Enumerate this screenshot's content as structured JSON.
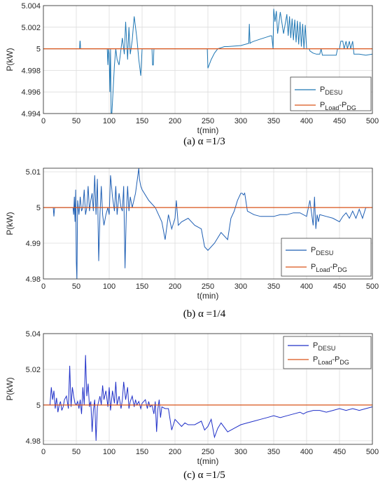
{
  "chart_data": [
    {
      "type": "line",
      "caption": "(a) α =1/3",
      "xlabel": "t(min)",
      "ylabel": "P(kW)",
      "xlim": [
        0,
        500
      ],
      "ylim": [
        4.994,
        5.004
      ],
      "xticks": [
        0,
        50,
        100,
        150,
        200,
        250,
        300,
        350,
        400,
        450,
        500
      ],
      "yticks": [
        4.994,
        4.996,
        4.998,
        5,
        5.002,
        5.004
      ],
      "ytick_labels": [
        "4.994",
        "4.996",
        "4.998",
        "5",
        "5.002",
        "5.004"
      ],
      "grid": true,
      "legend_position": "lower-right",
      "series": [
        {
          "name": "P_DESU",
          "label_main": "P",
          "label_sub": "DESU",
          "color": "#1f77b4",
          "x": [
            0,
            55,
            55.5,
            56,
            56.5,
            57,
            97,
            98,
            99,
            100,
            101,
            102,
            103,
            104,
            108,
            110,
            112,
            115,
            118,
            120,
            123,
            125,
            128,
            130,
            132,
            135,
            138,
            140,
            142,
            145,
            148,
            150,
            155,
            160,
            163,
            165,
            166,
            167,
            168,
            169,
            170,
            175,
            180,
            248,
            249,
            250,
            255,
            260,
            265,
            270,
            275,
            280,
            300,
            312,
            313,
            314,
            316,
            320,
            330,
            340,
            345,
            347,
            349,
            350,
            352,
            354,
            356,
            360,
            365,
            370,
            372,
            374,
            376,
            378,
            380,
            382,
            384,
            386,
            388,
            390,
            392,
            394,
            396,
            398,
            400,
            402,
            404,
            405,
            410,
            415,
            420,
            422,
            424,
            430,
            440,
            445,
            447,
            450,
            452,
            455,
            457,
            460,
            462,
            465,
            467,
            470,
            472,
            480,
            490,
            500
          ],
          "y": [
            5.0,
            5.0,
            5.0007,
            5.0007,
            5.0,
            5.0,
            5.0,
            4.9985,
            5.0,
            4.9995,
            4.996,
            5.0,
            4.9935,
            4.994,
            4.9985,
            5.0,
            4.999,
            4.9985,
            5.0,
            5.001,
            4.9995,
            5.0025,
            4.999,
            5.002,
            4.9995,
            5.0008,
            5.003,
            5.002,
            5.001,
            4.999,
            4.9975,
            5.0,
            5.0,
            5.0,
            5.0,
            5.0,
            4.9985,
            4.9985,
            5.0,
            5.0,
            5.0,
            5.0,
            5.0,
            5.0,
            5.0,
            4.9982,
            4.999,
            4.9996,
            5.0,
            5.0001,
            5.0002,
            5.0002,
            5.0003,
            5.0005,
            5.0023,
            5.0005,
            5.0006,
            5.0007,
            5.0009,
            5.0011,
            5.0012,
            5.0012,
            5.0,
            5.0037,
            5.0025,
            5.0035,
            5.0014,
            5.0034,
            5.0014,
            5.0032,
            5.0012,
            5.003,
            5.001,
            5.0028,
            5.0008,
            5.0027,
            5.0006,
            5.0026,
            5.0004,
            5.0025,
            5.0002,
            5.0023,
            5.0,
            5.0022,
            5.0,
            5.0,
            5.0,
            4.9998,
            4.9996,
            4.9995,
            4.9995,
            5.0,
            4.9994,
            4.9994,
            4.9994,
            4.9994,
            5.0,
            5.0,
            5.0007,
            5.0007,
            5.0,
            5.0007,
            5.0,
            5.0007,
            5.0,
            5.0007,
            4.9995,
            4.9995,
            4.9994,
            4.9995
          ]
        },
        {
          "name": "P_Load-P_DG",
          "label_main": "P",
          "label_sub": "Load",
          "label_rest": "-P",
          "label_sub2": "DG",
          "color": "#d95319",
          "x": [
            0,
            500
          ],
          "y": [
            5.0,
            5.0
          ]
        }
      ]
    },
    {
      "type": "line",
      "caption": "(b) α =1/4",
      "xlabel": "t(min)",
      "ylabel": "P(kW)",
      "xlim": [
        0,
        500
      ],
      "ylim": [
        4.98,
        5.011
      ],
      "xticks": [
        0,
        50,
        100,
        150,
        200,
        250,
        300,
        350,
        400,
        450,
        500
      ],
      "yticks": [
        4.98,
        4.99,
        5,
        5.01
      ],
      "ytick_labels": [
        "4.98",
        "4.99",
        "5",
        "5.01"
      ],
      "grid": true,
      "legend_position": "lower-right",
      "series": [
        {
          "name": "P_DESU",
          "label_main": "P",
          "label_sub": "DESU",
          "color": "#1f5fb4",
          "x": [
            0,
            15,
            16,
            17,
            18,
            45,
            46,
            47,
            48,
            49,
            50,
            51,
            52,
            54,
            56,
            58,
            60,
            62,
            64,
            66,
            68,
            70,
            72,
            74,
            76,
            78,
            80,
            82,
            84,
            86,
            88,
            90,
            92,
            95,
            98,
            100,
            102,
            105,
            108,
            110,
            112,
            115,
            118,
            120,
            122,
            124,
            126,
            128,
            130,
            132,
            135,
            140,
            145,
            146,
            148,
            150,
            160,
            170,
            180,
            185,
            190,
            195,
            200,
            202,
            205,
            210,
            220,
            230,
            240,
            245,
            250,
            260,
            270,
            280,
            285,
            290,
            295,
            300,
            302,
            304,
            306,
            310,
            320,
            330,
            340,
            350,
            360,
            370,
            380,
            390,
            400,
            405,
            410,
            412,
            414,
            416,
            418,
            420,
            430,
            440,
            450,
            455,
            460,
            465,
            470,
            475,
            480,
            485,
            490,
            495
          ],
          "y": [
            5.0,
            5.0,
            4.9975,
            5.0,
            5.0,
            5.0,
            4.998,
            5.003,
            4.996,
            5.005,
            4.985,
            4.98,
            5.002,
            4.998,
            5.003,
            4.999,
            5.0,
            5.005,
            4.998,
            5.0,
            5.006,
            4.999,
            5.002,
            5.004,
            4.999,
            5.009,
            4.998,
            5.008,
            4.985,
            4.998,
            5.006,
            4.998,
            4.995,
            4.998,
            5.0,
            4.998,
            5.009,
            5.003,
            4.999,
            5.006,
            4.998,
            5.004,
            5.0,
            4.999,
            5.006,
            4.983,
            4.998,
            5.006,
            4.999,
            5.003,
            5.0,
            5.004,
            5.011,
            5.008,
            5.006,
            5.005,
            5.002,
            5.0,
            4.996,
            4.991,
            4.998,
            4.994,
            4.997,
            5.002,
            4.995,
            4.996,
            4.997,
            4.995,
            4.994,
            4.989,
            4.988,
            4.99,
            4.993,
            4.991,
            4.997,
            4.999,
            5.002,
            5.004,
            5.004,
            5.0035,
            5.004,
            4.999,
            4.998,
            4.9975,
            4.9975,
            4.9975,
            4.998,
            4.998,
            4.9985,
            4.9985,
            4.9975,
            5.002,
            4.995,
            5.003,
            4.994,
            4.998,
            4.996,
            4.998,
            4.9975,
            4.997,
            4.996,
            4.9975,
            4.9985,
            4.997,
            4.999,
            4.997,
            4.9995,
            4.997,
            5.0,
            5.0
          ]
        },
        {
          "name": "P_Load-P_DG",
          "label_main": "P",
          "label_sub": "Load",
          "label_rest": "-P",
          "label_sub2": "DG",
          "color": "#d95319",
          "x": [
            0,
            500
          ],
          "y": [
            5.0,
            5.0
          ]
        }
      ]
    },
    {
      "type": "line",
      "caption": "(c) α =1/5",
      "xlabel": "t(min)",
      "ylabel": "P(kW)",
      "xlim": [
        0,
        500
      ],
      "ylim": [
        4.978,
        5.04
      ],
      "xticks": [
        0,
        50,
        100,
        150,
        200,
        250,
        300,
        350,
        400,
        450,
        500
      ],
      "yticks": [
        4.98,
        5,
        5.02,
        5.04
      ],
      "ytick_labels": [
        "4.98",
        "5",
        "5.02",
        "5.04"
      ],
      "grid": true,
      "legend_position": "top-right",
      "series": [
        {
          "name": "P_DESU",
          "label_main": "P",
          "label_sub": "DESU",
          "color": "#2030c8",
          "x": [
            0,
            10,
            12,
            14,
            16,
            18,
            20,
            22,
            24,
            26,
            28,
            30,
            32,
            35,
            38,
            40,
            42,
            44,
            46,
            48,
            50,
            52,
            54,
            56,
            58,
            60,
            62,
            64,
            66,
            68,
            70,
            72,
            74,
            76,
            78,
            80,
            82,
            84,
            86,
            88,
            90,
            92,
            95,
            98,
            100,
            102,
            105,
            108,
            110,
            112,
            115,
            118,
            120,
            122,
            125,
            128,
            130,
            132,
            135,
            138,
            140,
            142,
            145,
            148,
            150,
            155,
            158,
            160,
            162,
            165,
            168,
            170,
            172,
            174,
            176,
            178,
            180,
            185,
            190,
            195,
            200,
            210,
            215,
            220,
            230,
            240,
            245,
            250,
            255,
            260,
            265,
            270,
            280,
            290,
            300,
            310,
            320,
            330,
            340,
            350,
            360,
            370,
            380,
            390,
            395,
            400,
            410,
            420,
            430,
            440,
            450,
            460,
            470,
            480,
            490,
            500
          ],
          "y": [
            5.0,
            5.0,
            5.01,
            5.003,
            5.008,
            4.998,
            5.004,
            4.996,
            5.0,
            5.002,
            4.997,
            4.999,
            5.003,
            5.005,
            4.998,
            5.022,
            4.999,
            5.01,
            5.005,
            5.001,
            5.0,
            5.002,
            4.998,
            5.003,
            4.995,
            5.01,
            5.0,
            5.028,
            5.005,
            5.012,
            4.999,
            5.002,
            4.985,
            4.997,
            5.003,
            4.98,
            4.999,
            5.002,
            5.005,
            5.0,
            5.011,
            5.003,
            5.008,
            4.999,
            5.01,
            4.997,
            5.008,
            5.001,
            5.013,
            5.0,
            5.005,
            4.998,
            5.003,
            5.013,
            5.003,
            5.01,
            4.998,
            5.002,
            5.005,
            4.999,
            5.003,
            5.0,
            5.002,
            4.998,
            5.001,
            5.003,
            4.998,
            5.002,
            4.999,
            5.0,
            4.995,
            5.002,
            4.985,
            4.998,
            5.003,
            4.993,
            4.999,
            4.998,
            4.998,
            4.986,
            4.992,
            4.988,
            4.99,
            4.989,
            4.989,
            4.991,
            4.986,
            4.988,
            4.992,
            4.982,
            4.987,
            4.99,
            4.985,
            4.987,
            4.989,
            4.99,
            4.991,
            4.992,
            4.993,
            4.994,
            4.993,
            4.994,
            4.995,
            4.996,
            4.995,
            4.996,
            4.997,
            4.997,
            4.996,
            4.997,
            4.998,
            4.997,
            4.998,
            4.997,
            4.998,
            4.999
          ]
        },
        {
          "name": "P_Load-P_DG",
          "label_main": "P",
          "label_sub": "Load",
          "label_rest": "-P",
          "label_sub2": "DG",
          "color": "#d95319",
          "x": [
            0,
            500
          ],
          "y": [
            5.0,
            5.0
          ]
        }
      ]
    }
  ]
}
